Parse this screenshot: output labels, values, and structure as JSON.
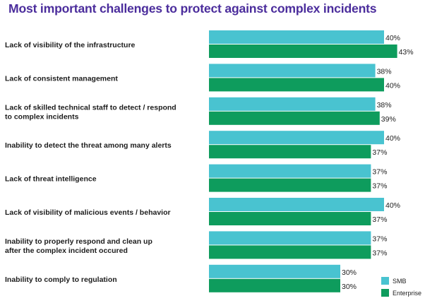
{
  "chart_data": {
    "type": "bar",
    "orientation": "horizontal",
    "title": "Most important challenges to protect against complex incidents",
    "categories": [
      [
        "Lack of visibility of the infrastructure"
      ],
      [
        "Lack of consistent management"
      ],
      [
        "Lack of skilled technical staff to detect / respond",
        "to complex incidents"
      ],
      [
        "Inability to detect the threat among many alerts"
      ],
      [
        "Lack of threat intelligence"
      ],
      [
        "Lack of visibility of malicious events / behavior"
      ],
      [
        "Inability to properly respond and clean up",
        "after the complex incident occured"
      ],
      [
        "Inability to comply to regulation"
      ]
    ],
    "series": [
      {
        "name": "SMB",
        "color": "#49c3d0",
        "values": [
          40,
          38,
          38,
          40,
          37,
          40,
          37,
          30
        ]
      },
      {
        "name": "Enterprise",
        "color": "#0e9c5d",
        "values": [
          43,
          40,
          39,
          37,
          37,
          37,
          37,
          30
        ]
      }
    ],
    "value_suffix": "%",
    "legend_position": "bottom-right",
    "grid": false
  }
}
